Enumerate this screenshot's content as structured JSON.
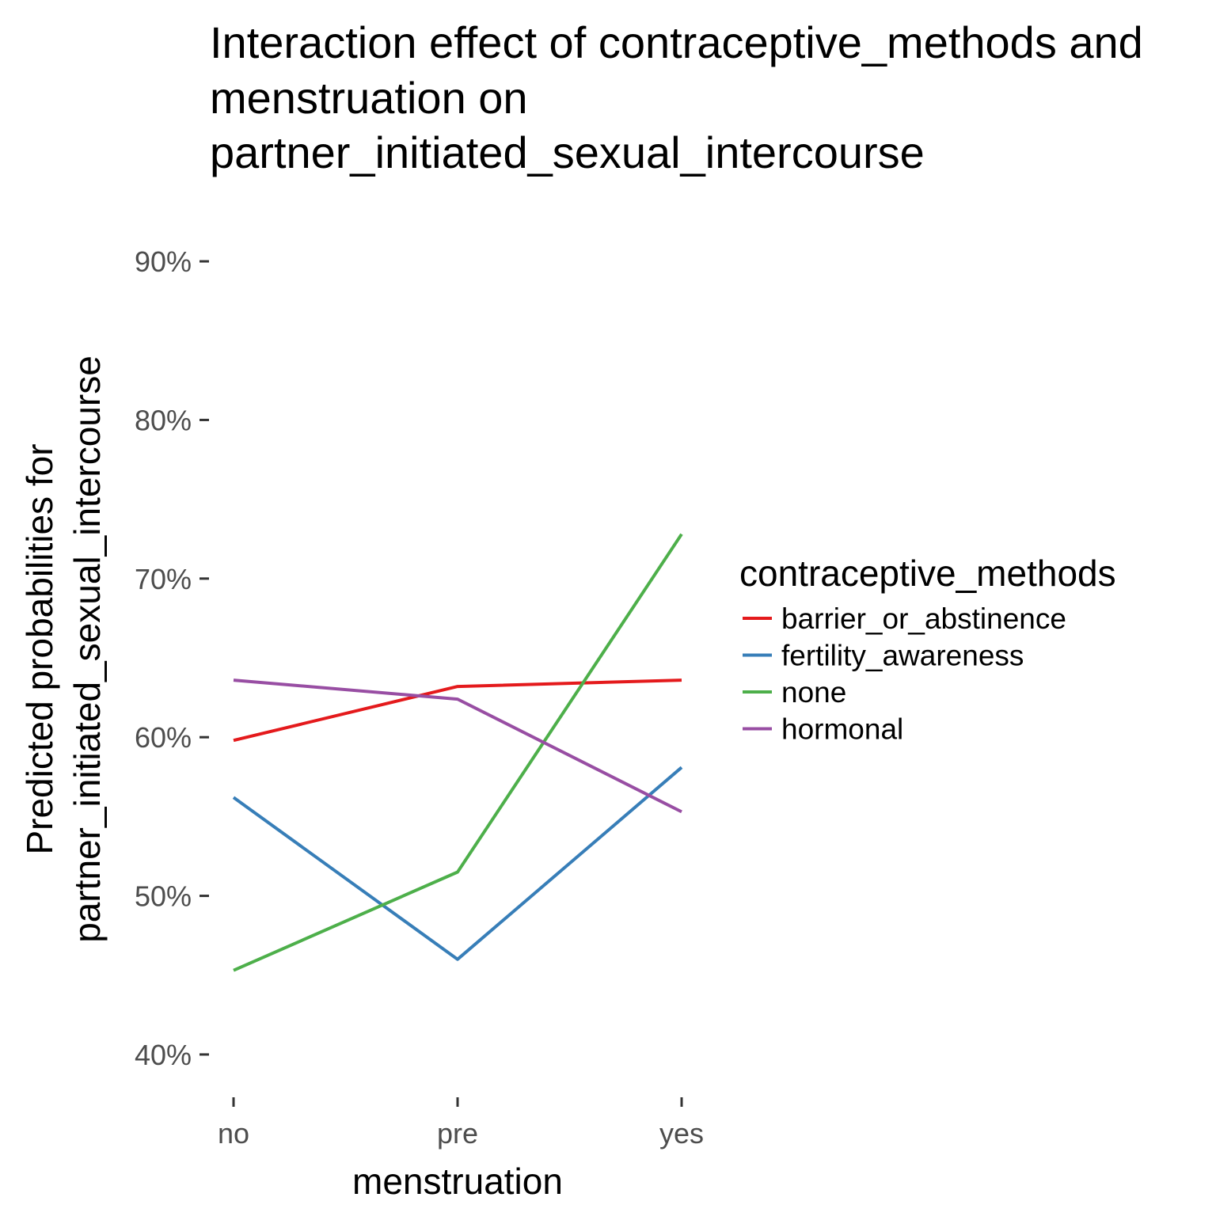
{
  "chart_data": {
    "type": "line",
    "title": "Interaction effect of contraceptive_methods and menstruation on partner_initiated_sexual_intercourse",
    "title_lines": [
      "Interaction effect of contraceptive_methods and",
      "menstruation on",
      "partner_initiated_sexual_intercourse"
    ],
    "xlabel": "menstruation",
    "ylabel_lines": [
      "Predicted probabilities for",
      "partner_initiated_sexual_intercourse"
    ],
    "categories": [
      "no",
      "pre",
      "yes"
    ],
    "ylim": [
      0.38,
      0.925
    ],
    "y_ticks": [
      0.4,
      0.5,
      0.6,
      0.7,
      0.8,
      0.9
    ],
    "y_tick_labels": [
      "40%",
      "50%",
      "60%",
      "70%",
      "80%",
      "90%"
    ],
    "grid": false,
    "legend": {
      "title": "contraceptive_methods",
      "placement": "right"
    },
    "series": [
      {
        "name": "barrier_or_abstinence",
        "color": "#E41A1C",
        "values": [
          0.598,
          0.632,
          0.636
        ]
      },
      {
        "name": "fertility_awareness",
        "color": "#377EB8",
        "values": [
          0.562,
          0.46,
          0.581
        ]
      },
      {
        "name": "none",
        "color": "#4DAF4A",
        "values": [
          0.453,
          0.515,
          0.728
        ]
      },
      {
        "name": "hormonal",
        "color": "#984EA3",
        "values": [
          0.636,
          0.624,
          0.553
        ]
      }
    ]
  }
}
